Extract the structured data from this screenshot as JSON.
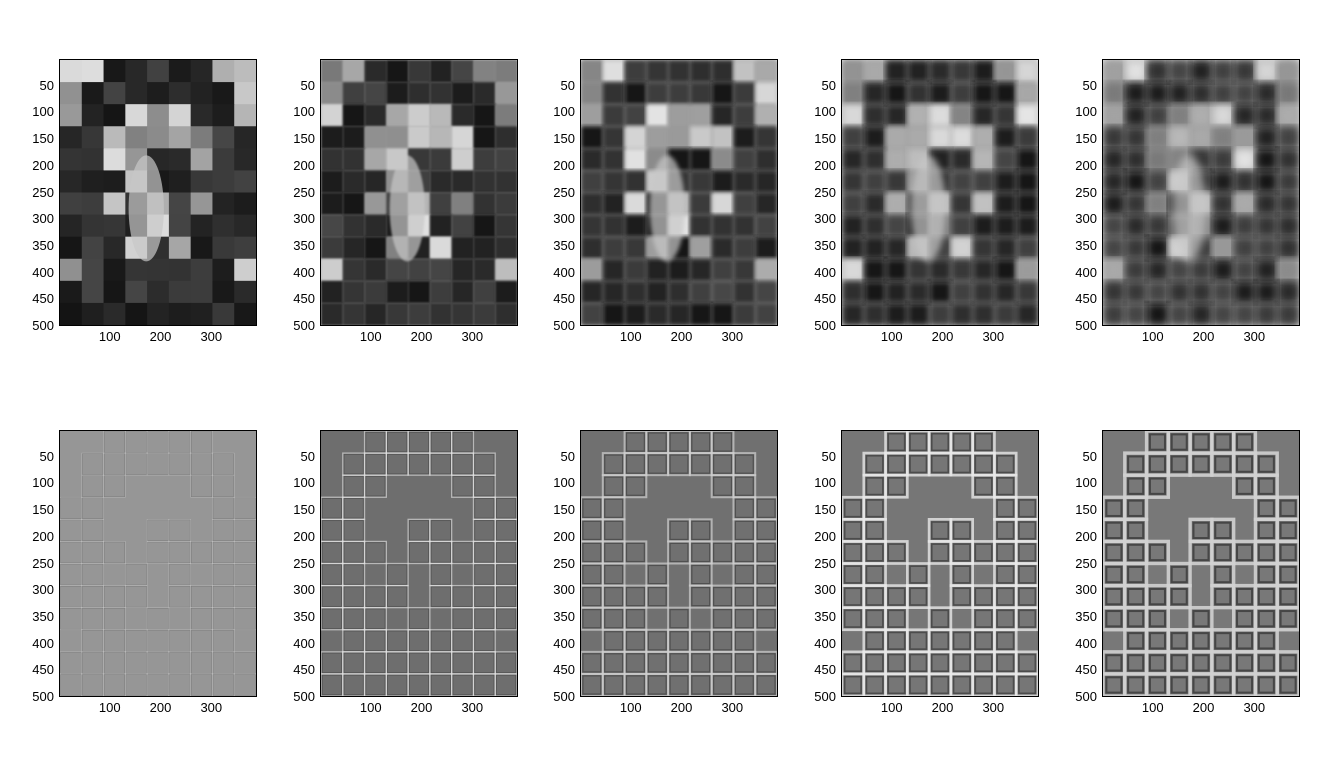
{
  "figure": {
    "y_tick_labels": [
      "50",
      "100",
      "150",
      "200",
      "250",
      "300",
      "350",
      "400",
      "450",
      "500"
    ],
    "x_tick_labels": [
      "100",
      "200",
      "300"
    ],
    "rows": [
      {
        "kind": "lowpass",
        "count": 5
      },
      {
        "kind": "highpass",
        "count": 5
      }
    ]
  }
}
